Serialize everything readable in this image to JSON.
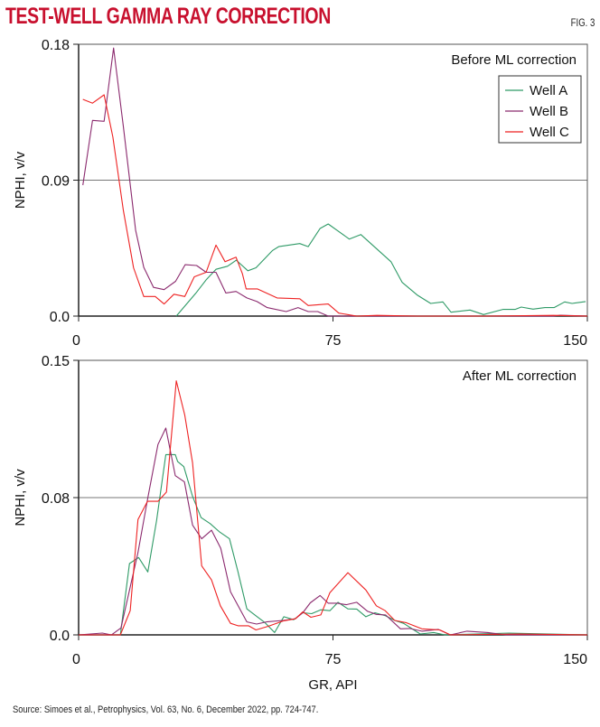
{
  "header": {
    "title": "TEST-WELL GAMMA RAY CORRECTION",
    "fig_label": "FIG. 3"
  },
  "source": "Source: Simoes et al., Petrophysics, Vol. 63, No. 6, December 2022, pp. 724-747.",
  "colors": {
    "title": "#c8102e",
    "well_a": "#2e9a66",
    "well_b": "#8b2a6e",
    "well_c": "#ee2222",
    "gridline": "#777777"
  },
  "legend": [
    {
      "name": "Well A",
      "color": "#2e9a66"
    },
    {
      "name": "Well B",
      "color": "#8b2a6e"
    },
    {
      "name": "Well C",
      "color": "#ee2222"
    }
  ],
  "chart_data": [
    {
      "type": "line",
      "title": "Before ML correction",
      "xlabel": "",
      "ylabel": "NPHI, v/v",
      "xlim": [
        0,
        150
      ],
      "ylim": [
        0,
        0.18
      ],
      "xticks": [
        0,
        75,
        150
      ],
      "xtick_labels": [
        "0",
        "75",
        "150"
      ],
      "yticks": [
        0,
        0.09,
        0.18
      ],
      "ytick_labels": [
        "0.0",
        "0.09",
        "0.18"
      ],
      "grid": "horizontal midline only",
      "legend_position": "top-right",
      "series": [
        {
          "name": "Well A",
          "color": "#2e9a66",
          "x": [
            28.8,
            34.5,
            37.6,
            40.5,
            43.9,
            46.5,
            49.9,
            52.3,
            57.2,
            59,
            65.2,
            67.7,
            71.2,
            73.6,
            79.8,
            83.2,
            92.1,
            95.4,
            99.8,
            103.8,
            107.4,
            109.8,
            115.4,
            119.4,
            125.1,
            128.7,
            130.5,
            134,
            137.5,
            140.2,
            143.3,
            145.5,
            149.5
          ],
          "y": [
            0,
            0.015,
            0.024,
            0.031,
            0.033,
            0.037,
            0.03,
            0.032,
            0.0435,
            0.046,
            0.048,
            0.046,
            0.058,
            0.061,
            0.051,
            0.054,
            0.036,
            0.0223,
            0.014,
            0.0084,
            0.0094,
            0.0026,
            0.004,
            0.001,
            0.0044,
            0.0044,
            0.006,
            0.0046,
            0.0056,
            0.0056,
            0.0094,
            0.0084,
            0.0096
          ]
        },
        {
          "name": "Well B",
          "color": "#8b2a6e",
          "x": [
            1.25,
            4.1,
            7.5,
            10.3,
            13.2,
            16.8,
            19.2,
            22.1,
            25.2,
            28.6,
            31.4,
            34.8,
            37.6,
            40.5,
            43.4,
            46.4,
            49.6,
            52.6,
            55.6,
            61.2,
            64.7,
            67.7,
            70.5,
            73.6,
            100,
            130,
            140,
            142,
            150
          ],
          "y": [
            0.0867,
            0.1296,
            0.129,
            0.1775,
            0.1256,
            0.0568,
            0.0323,
            0.019,
            0.0175,
            0.023,
            0.034,
            0.0335,
            0.029,
            0.029,
            0.0153,
            0.0163,
            0.012,
            0.0096,
            0.0056,
            0.003,
            0.0056,
            0.003,
            0.003,
            0,
            0,
            0,
            0,
            0.0006,
            0
          ]
        },
        {
          "name": "Well C",
          "color": "#ee2222",
          "x": [
            1.25,
            4.1,
            7.5,
            10.1,
            13.2,
            16.2,
            19.2,
            22.6,
            25.2,
            28.1,
            31.3,
            34.1,
            37.6,
            40.5,
            43.2,
            46.4,
            48.3,
            49.4,
            52.7,
            58.5,
            65.2,
            67.7,
            73.6,
            76.7,
            82,
            88,
            100,
            120,
            140,
            150
          ],
          "y": [
            0.1435,
            0.141,
            0.1465,
            0.1186,
            0.07,
            0.032,
            0.013,
            0.013,
            0.008,
            0.0145,
            0.013,
            0.026,
            0.029,
            0.047,
            0.036,
            0.039,
            0.028,
            0.018,
            0.018,
            0.012,
            0.0115,
            0.007,
            0.008,
            0.002,
            0,
            0.0005,
            0,
            0,
            0.0005,
            0
          ]
        }
      ]
    },
    {
      "type": "line",
      "title": "After ML correction",
      "xlabel": "GR, API",
      "ylabel": "NPHI, v/v",
      "xlim": [
        0,
        150
      ],
      "ylim": [
        0,
        0.15
      ],
      "xticks": [
        0,
        75,
        150
      ],
      "xtick_labels": [
        "0",
        "75",
        "150"
      ],
      "yticks": [
        0,
        0.075,
        0.15
      ],
      "ytick_labels": [
        "0.0",
        "0.08",
        "0.15"
      ],
      "grid": "horizontal midline only",
      "series": [
        {
          "name": "Well A",
          "color": "#2e9a66",
          "x": [
            0,
            12.3,
            15,
            17.7,
            20.4,
            23,
            25.7,
            28.5,
            29.2,
            31,
            33.6,
            36.1,
            38.8,
            41.6,
            44.5,
            47,
            49.6,
            52.3,
            55,
            57.8,
            60.5,
            63.4,
            66.1,
            68.7,
            71.4,
            74.1,
            76.5,
            79.4,
            82,
            84.7,
            87.4,
            90.5,
            93.2,
            95.8,
            100.7,
            104.7,
            108,
            126.9,
            150
          ],
          "y": [
            0,
            0,
            0.039,
            0.0423,
            0.0344,
            0.0625,
            0.0985,
            0.0985,
            0.0947,
            0.0919,
            0.0757,
            0.0641,
            0.0608,
            0.0562,
            0.0525,
            0.0344,
            0.0142,
            0.0104,
            0.0066,
            0.0013,
            0.0099,
            0.0083,
            0.0121,
            0.0116,
            0.0137,
            0.0132,
            0.0178,
            0.0142,
            0.0141,
            0.0099,
            0.0121,
            0.0104,
            0.0079,
            0.0063,
            0.0005,
            0.0013,
            0,
            0.001,
            0
          ]
        },
        {
          "name": "Well B",
          "color": "#8b2a6e",
          "x": [
            0,
            3.5,
            7,
            9.7,
            12.5,
            17.5,
            20.4,
            23.4,
            25.7,
            28.5,
            31.2,
            33.6,
            36.3,
            39.2,
            41.9,
            44.8,
            49.6,
            52.5,
            55.4,
            60.3,
            63.9,
            66.1,
            68.3,
            71.2,
            73.6,
            76.3,
            78.9,
            82,
            85.2,
            87.8,
            90.5,
            94.9,
            97.6,
            101.2,
            106,
            109.6,
            114.5,
            120.7,
            126,
            150
          ],
          "y": [
            0,
            0.0005,
            0.001,
            0,
            0.0038,
            0.045,
            0.0749,
            0.104,
            0.113,
            0.087,
            0.0836,
            0.06,
            0.0525,
            0.0572,
            0.0473,
            0.0236,
            0.0071,
            0.0059,
            0.0071,
            0.0079,
            0.0088,
            0.0121,
            0.0175,
            0.0215,
            0.0173,
            0.0173,
            0.0165,
            0.0178,
            0.0129,
            0.0112,
            0.0109,
            0.0033,
            0.0035,
            0.002,
            0.003,
            0,
            0.002,
            0.0013,
            0,
            0
          ]
        },
        {
          "name": "Well C",
          "color": "#ee2222",
          "x": [
            0,
            12.3,
            15.2,
            17.5,
            20.3,
            23.4,
            25.9,
            28.8,
            31.3,
            33.6,
            36.3,
            39.2,
            41.8,
            44.8,
            47,
            50.1,
            52.3,
            55.9,
            60.3,
            63.9,
            66.1,
            68.5,
            71.4,
            74.1,
            79.4,
            84.7,
            87.8,
            90.4,
            93.2,
            96.7,
            101.2,
            106.5,
            109.6,
            130,
            150
          ],
          "y": [
            0,
            0,
            0.0132,
            0.063,
            0.073,
            0.073,
            0.078,
            0.1388,
            0.12,
            0.094,
            0.0377,
            0.03,
            0.0159,
            0.0063,
            0.005,
            0.005,
            0.0027,
            0.0047,
            0.0076,
            0.0088,
            0.0126,
            0.0096,
            0.0109,
            0.0231,
            0.034,
            0.0245,
            0.0159,
            0.0132,
            0.0079,
            0.0066,
            0.0033,
            0.0027,
            0,
            0.0005,
            0
          ]
        }
      ]
    }
  ]
}
